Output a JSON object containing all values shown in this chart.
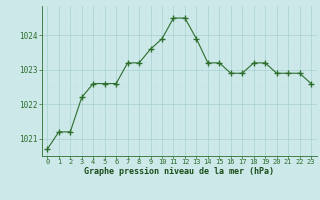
{
  "x": [
    0,
    1,
    2,
    3,
    4,
    5,
    6,
    7,
    8,
    9,
    10,
    11,
    12,
    13,
    14,
    15,
    16,
    17,
    18,
    19,
    20,
    21,
    22,
    23
  ],
  "y": [
    1020.7,
    1021.2,
    1021.2,
    1022.2,
    1022.6,
    1022.6,
    1022.6,
    1023.2,
    1023.2,
    1023.6,
    1023.9,
    1024.5,
    1024.5,
    1023.9,
    1023.2,
    1023.2,
    1022.9,
    1022.9,
    1023.2,
    1023.2,
    1022.9,
    1022.9,
    1022.9,
    1022.6
  ],
  "line_color": "#2d6e2d",
  "marker": "+",
  "bg_color": "#cce8e8",
  "grid_color_major": "#aed4d4",
  "grid_color_minor": "#c8e4e4",
  "ylabel_ticks": [
    1021,
    1022,
    1023,
    1024
  ],
  "xlabel_label": "Graphe pression niveau de la mer (hPa)",
  "xlabel_color": "#1a4d1a",
  "tick_color": "#2d6e2d",
  "xlim": [
    -0.5,
    23.5
  ],
  "ylim": [
    1020.5,
    1024.85
  ]
}
